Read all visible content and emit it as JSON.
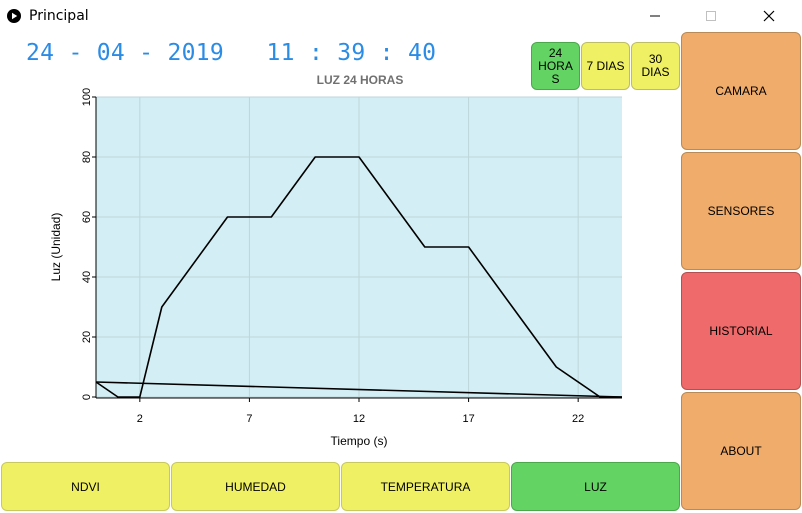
{
  "window": {
    "title": "Principal"
  },
  "datetime": "24 - 04 - 2019   11 : 39 : 40",
  "range_buttons": [
    {
      "label": "24 HORAS",
      "display": "24\nHORA\nS",
      "active": true
    },
    {
      "label": "7 DIAS",
      "active": false
    },
    {
      "label": "30 DIAS",
      "active": false
    }
  ],
  "side_menu": [
    {
      "label": "CAMARA"
    },
    {
      "label": "SENSORES"
    },
    {
      "label": "HISTORIAL",
      "active": true
    },
    {
      "label": "ABOUT"
    }
  ],
  "bottom_tabs": [
    {
      "label": "NDVI"
    },
    {
      "label": "HUMEDAD"
    },
    {
      "label": "TEMPERATURA"
    },
    {
      "label": "LUZ",
      "active": true
    }
  ],
  "colors": {
    "accent_blue": "#2b8ce6",
    "active_green": "#63d463",
    "inactive_yellow": "#f0f064",
    "orange": "#f0ac6a",
    "red": "#ef6a6a",
    "plot_bg": "#d3eff5"
  },
  "chart_data": {
    "type": "line",
    "title": "LUZ 24 HORAS",
    "xlabel": "Tiempo (s)",
    "ylabel": "Luz (Unidad)",
    "xlim": [
      0,
      24
    ],
    "ylim": [
      0,
      100
    ],
    "x_ticks": [
      2,
      7,
      12,
      17,
      22
    ],
    "y_ticks": [
      0,
      20,
      40,
      60,
      80,
      100
    ],
    "grid": true,
    "series": [
      {
        "x": [
          0,
          1,
          2,
          3,
          6,
          8,
          10,
          12,
          15,
          17,
          19,
          21,
          23,
          24
        ],
        "values": [
          5,
          0,
          0,
          30,
          60,
          60,
          80,
          80,
          50,
          50,
          30,
          10,
          0,
          0
        ]
      },
      {
        "x": [
          0,
          24
        ],
        "values": [
          5,
          0
        ]
      }
    ]
  }
}
